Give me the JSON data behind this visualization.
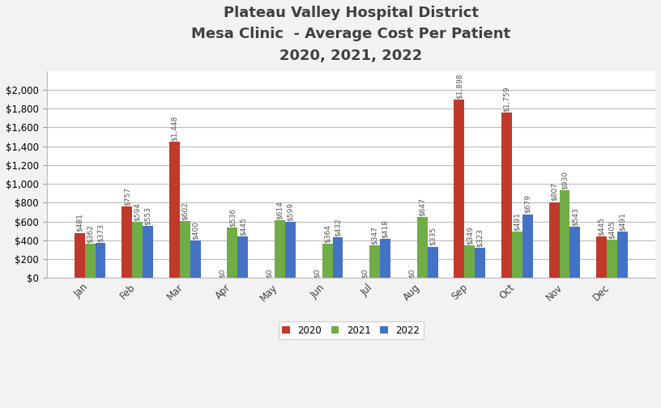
{
  "title_line1": "Plateau Valley Hospital District",
  "title_line2": "Mesa Clinic  - Average Cost Per Patient",
  "title_line3": "2020, 2021, 2022",
  "months": [
    "Jan",
    "Feb",
    "Mar",
    "Apr",
    "May",
    "Jun",
    "Jul",
    "Aug",
    "Sep",
    "Oct",
    "Nov",
    "Dec"
  ],
  "data_2020": [
    481,
    757,
    1448,
    0,
    0,
    0,
    0,
    0,
    1898,
    1759,
    807,
    445
  ],
  "data_2021": [
    362,
    594,
    602,
    536,
    614,
    364,
    347,
    647,
    349,
    491,
    930,
    405
  ],
  "data_2022": [
    373,
    553,
    400,
    445,
    599,
    432,
    418,
    335,
    323,
    679,
    543,
    491
  ],
  "color_2020": "#C0392B",
  "color_2021": "#70AD47",
  "color_2022": "#4472C4",
  "bar_width": 0.22,
  "ylim": [
    0,
    2200
  ],
  "yticks": [
    0,
    200,
    400,
    600,
    800,
    1000,
    1200,
    1400,
    1600,
    1800,
    2000
  ],
  "legend_labels": [
    "2020",
    "2021",
    "2022"
  ],
  "background_color": "#FFFFFF",
  "outer_bg": "#F2F2F2",
  "grid_color": "#BBBBBB",
  "title_color": "#404040",
  "title_fontsize": 13,
  "label_fontsize": 6.5,
  "tick_fontsize": 8.5
}
